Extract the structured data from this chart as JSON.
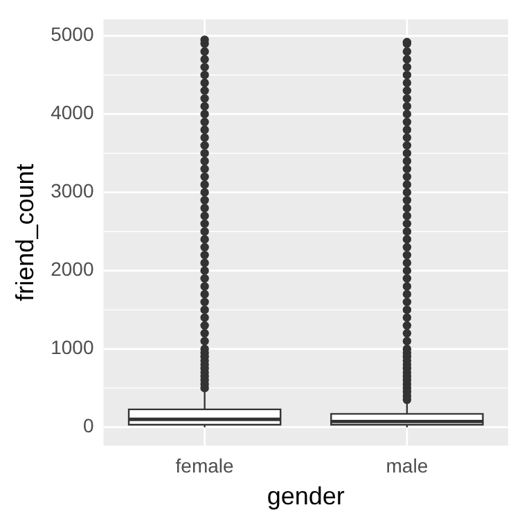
{
  "chart_data": {
    "type": "box",
    "xlabel": "gender",
    "ylabel": "friend_count",
    "categories": [
      "female",
      "male"
    ],
    "boxes": [
      {
        "low": 0,
        "q1": 32,
        "median": 101,
        "q3": 228,
        "high": 481,
        "outliers": [
          500,
          550,
          600,
          650,
          700,
          750,
          800,
          850,
          900,
          950,
          1000,
          1100,
          1200,
          1300,
          1400,
          1500,
          1600,
          1700,
          1800,
          1900,
          2000,
          2100,
          2200,
          2300,
          2400,
          2500,
          2600,
          2700,
          2800,
          2900,
          3000,
          3100,
          3200,
          3300,
          3400,
          3500,
          3600,
          3700,
          3800,
          3900,
          4000,
          4100,
          4200,
          4300,
          4400,
          4500,
          4600,
          4700,
          4800,
          4900,
          4950
        ]
      },
      {
        "low": 0,
        "q1": 32,
        "median": 74,
        "q3": 171,
        "high": 335,
        "outliers": [
          350,
          400,
          450,
          500,
          550,
          600,
          650,
          700,
          750,
          800,
          850,
          900,
          950,
          1000,
          1100,
          1200,
          1300,
          1400,
          1500,
          1600,
          1700,
          1800,
          1900,
          2000,
          2100,
          2200,
          2300,
          2400,
          2500,
          2600,
          2700,
          2800,
          2900,
          3000,
          3100,
          3200,
          3300,
          3400,
          3500,
          3600,
          3700,
          3800,
          3900,
          4000,
          4100,
          4200,
          4300,
          4400,
          4500,
          4600,
          4700,
          4800,
          4900,
          4920
        ]
      }
    ],
    "ylim": [
      -235,
      5210
    ],
    "yticks": [
      0,
      1000,
      2000,
      3000,
      4000,
      5000
    ],
    "grid": true
  }
}
